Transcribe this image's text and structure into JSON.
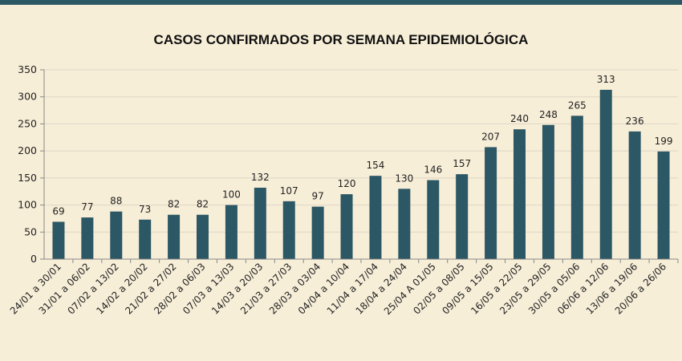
{
  "chart_data": {
    "type": "bar",
    "title": "CASOS CONFIRMADOS POR SEMANA EPIDEMIOLÓGICA",
    "xlabel": "",
    "ylabel": "",
    "ylim": [
      0,
      350
    ],
    "yticks": [
      0,
      50,
      100,
      150,
      200,
      250,
      300,
      350
    ],
    "grid": true,
    "bar_color": "#2c5764",
    "categories": [
      "24/01 a 30/01",
      "31/01 a 06/02",
      "07/02 a 13/02",
      "14/02 a 20/02",
      "21/02 a 27/02",
      "28/02 a 06/03",
      "07/03 a 13/03",
      "14/03 a 20/03",
      "21/03 a 27/03",
      "28/03 a 03/04",
      "04/04 a 10/04",
      "11/04 a 17/04",
      "18/04 a 24/04",
      "25/04 A 01/05",
      "02/05 a 08/05",
      "09/05 a 15/05",
      "16/05 a 22/05",
      "23/05 a 29/05",
      "30/05 a 05/06",
      "06/06 a 12/06",
      "13/06 a 19/06",
      "20/06 a 26/06"
    ],
    "values": [
      69,
      77,
      88,
      73,
      82,
      82,
      100,
      132,
      107,
      97,
      120,
      154,
      130,
      146,
      157,
      207,
      240,
      248,
      265,
      313,
      236,
      199
    ]
  }
}
